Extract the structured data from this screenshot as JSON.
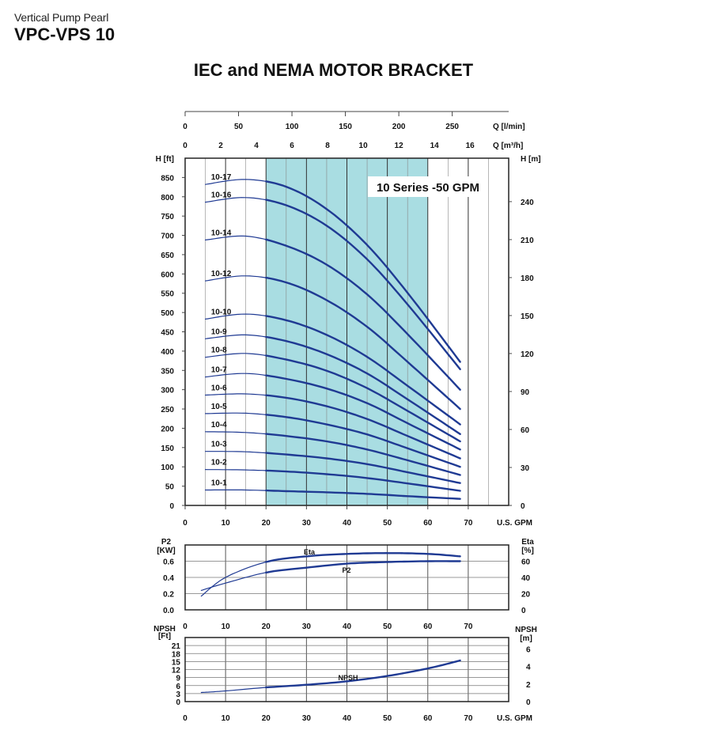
{
  "header": {
    "subtitle": "Vertical Pump Pearl",
    "title": "VPC-VPS 10",
    "heading": "IEC and NEMA MOTOR BRACKET"
  },
  "colors": {
    "curve": "#1f3a93",
    "band": "#a9dde2",
    "grid": "#444444"
  },
  "chart_data": [
    {
      "type": "line",
      "name": "head-curves",
      "series_label": "10 Series -50 GPM",
      "top_axis_1": {
        "label": "Q [l/min]",
        "ticks": [
          0,
          50,
          100,
          150,
          200,
          250
        ]
      },
      "top_axis_2": {
        "label": "Q [m³/h]",
        "ticks": [
          0,
          2,
          4,
          6,
          8,
          10,
          12,
          14,
          16
        ]
      },
      "xlabel": "U.S. GPM",
      "x_ticks": [
        0,
        10,
        20,
        30,
        40,
        50,
        60,
        70
      ],
      "xlim": [
        0,
        80
      ],
      "ylabel_left": "H [ft]",
      "y_ticks_left": [
        0,
        50,
        100,
        150,
        200,
        250,
        300,
        350,
        400,
        450,
        500,
        550,
        600,
        650,
        700,
        750,
        800,
        850
      ],
      "ylim_left": [
        0,
        900
      ],
      "ylabel_right": "H [m]",
      "y_ticks_right": [
        0,
        30,
        60,
        90,
        120,
        150,
        180,
        210,
        240
      ],
      "recommended_range_gpm": [
        20,
        60
      ],
      "series": [
        {
          "name": "10-1",
          "head": [
            40,
            40,
            37,
            34,
            30,
            24,
            17
          ]
        },
        {
          "name": "10-2",
          "head": [
            93,
            92,
            88,
            81,
            71,
            57,
            38
          ]
        },
        {
          "name": "10-3",
          "head": [
            140,
            139,
            132,
            122,
            107,
            86,
            58
          ]
        },
        {
          "name": "10-4",
          "head": [
            191,
            189,
            180,
            166,
            145,
            117,
            79
          ]
        },
        {
          "name": "10-5",
          "head": [
            238,
            239,
            229,
            210,
            184,
            148,
            100
          ]
        },
        {
          "name": "10-6",
          "head": [
            286,
            289,
            279,
            257,
            224,
            180,
            122
          ]
        },
        {
          "name": "10-7",
          "head": [
            333,
            342,
            328,
            303,
            265,
            213,
            145
          ]
        },
        {
          "name": "10-8",
          "head": [
            384,
            394,
            378,
            349,
            304,
            245,
            166
          ]
        },
        {
          "name": "10-9",
          "head": [
            432,
            442,
            426,
            392,
            342,
            275,
            185
          ]
        },
        {
          "name": "10-10",
          "head": [
            483,
            496,
            480,
            442,
            385,
            310,
            210
          ]
        },
        {
          "name": "10-12",
          "head": [
            582,
            595,
            578,
            532,
            463,
            372,
            250
          ]
        },
        {
          "name": "10-14",
          "head": [
            688,
            698,
            673,
            624,
            547,
            444,
            300
          ]
        },
        {
          "name": "10-16",
          "head": [
            786,
            798,
            778,
            725,
            638,
            521,
            353
          ]
        },
        {
          "name": "10-17",
          "head": [
            832,
            845,
            826,
            768,
            675,
            551,
            372
          ]
        }
      ],
      "x": [
        5,
        15,
        25,
        35,
        45,
        55,
        68
      ]
    },
    {
      "type": "line",
      "name": "power-efficiency",
      "ylabel_left": "P2 [KW]",
      "y_ticks_left": [
        0.0,
        0.2,
        0.4,
        0.6
      ],
      "ylim_left": [
        0,
        0.8
      ],
      "ylabel_right": "Eta [%]",
      "y_ticks_right": [
        0,
        20,
        40,
        60
      ],
      "ylim_right": [
        0,
        80
      ],
      "x_ticks": [
        0,
        10,
        20,
        30,
        40,
        50,
        60,
        70
      ],
      "series": [
        {
          "name": "Eta",
          "x": [
            4,
            10,
            20,
            30,
            40,
            50,
            60,
            68
          ],
          "values": [
            17,
            40,
            59,
            66,
            69,
            70,
            69,
            66
          ]
        },
        {
          "name": "P2",
          "x": [
            4,
            10,
            20,
            30,
            40,
            50,
            60,
            68
          ],
          "values": [
            0.24,
            0.33,
            0.46,
            0.52,
            0.57,
            0.59,
            0.6,
            0.6
          ]
        }
      ]
    },
    {
      "type": "line",
      "name": "npsh",
      "ylabel_left": "NPSH [Ft]",
      "y_ticks_left": [
        0,
        3,
        6,
        9,
        12,
        15,
        18,
        21
      ],
      "ylim_left": [
        0,
        24
      ],
      "ylabel_right": "NPSH [m]",
      "y_ticks_right": [
        0,
        2,
        4,
        6
      ],
      "xlabel": "U.S. GPM",
      "x_ticks": [
        0,
        10,
        20,
        30,
        40,
        50,
        60,
        70
      ],
      "series": [
        {
          "name": "NPSH",
          "x": [
            4,
            10,
            20,
            30,
            40,
            50,
            60,
            68
          ],
          "values": [
            3.4,
            4.0,
            5.3,
            6.3,
            7.6,
            9.6,
            12.4,
            15.4
          ]
        }
      ]
    }
  ]
}
